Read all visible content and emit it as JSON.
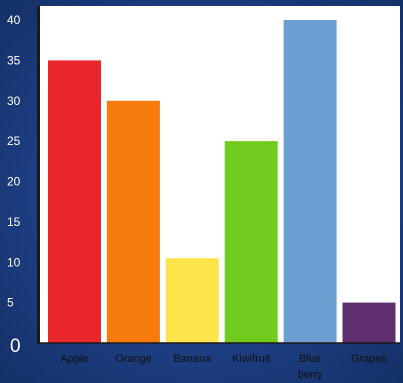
{
  "chart_data": {
    "type": "bar",
    "categories": [
      "Apple",
      "Orange",
      "Banana",
      "Kiwifruit",
      "Blue berry",
      "Grapes"
    ],
    "category_lines": [
      [
        "Apple"
      ],
      [
        "Orange"
      ],
      [
        "Banana"
      ],
      [
        "Kiwifruit"
      ],
      [
        "Blue",
        "berry"
      ],
      [
        "Grapes"
      ]
    ],
    "values": [
      35,
      30,
      10.5,
      25,
      40,
      5
    ],
    "colors": [
      "#e8262b",
      "#f77b0c",
      "#fde44a",
      "#72cc1f",
      "#6e9fd2",
      "#5e2e6f"
    ],
    "yticks": [
      0,
      5,
      10,
      15,
      20,
      25,
      30,
      35,
      40
    ],
    "ylim": [
      0,
      40
    ],
    "grid": false,
    "title": "",
    "xlabel": "",
    "ylabel": ""
  }
}
